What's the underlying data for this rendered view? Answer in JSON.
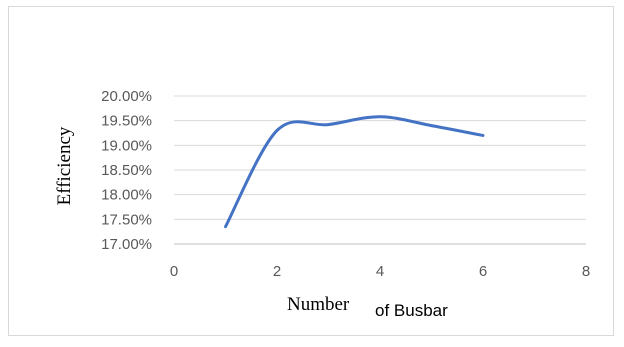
{
  "chart_data": {
    "type": "line",
    "title": "",
    "xlabel_main": "Number",
    "xlabel_rest": "of Busbar",
    "ylabel": "Efficiency",
    "x_ticks": [
      "0",
      "2",
      "4",
      "6",
      "8"
    ],
    "y_ticks": [
      "17.00%",
      "17.50%",
      "18.00%",
      "18.50%",
      "19.00%",
      "19.50%",
      "20.00%"
    ],
    "xlim": [
      0,
      8
    ],
    "ylim": [
      0.17,
      0.2
    ],
    "grid": "horizontal",
    "smooth": true,
    "series": [
      {
        "color": "#4472c4",
        "x": [
          1,
          2,
          3,
          4,
          5,
          6
        ],
        "y": [
          0.1735,
          0.193,
          0.1942,
          0.1958,
          0.194,
          0.192
        ]
      }
    ]
  }
}
